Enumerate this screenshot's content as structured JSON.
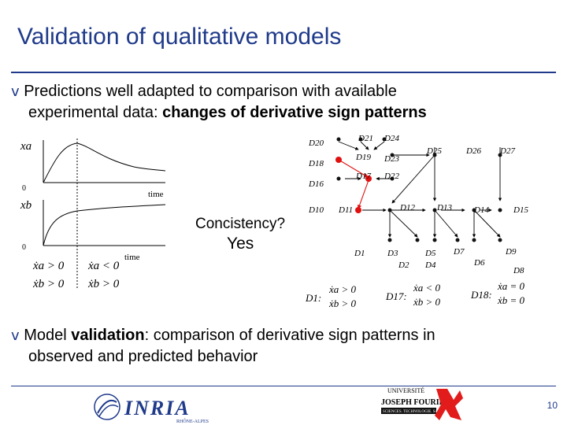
{
  "title": "Validation of qualitative models",
  "bullet_glyph": "v",
  "bullet1": {
    "line1": "Predictions well adapted to comparison with available",
    "line2_prefix": "experimental data: ",
    "line2_bold": "changes of derivative sign patterns"
  },
  "bullet2": {
    "prefix": "Model ",
    "bold": "validation",
    "rest": ": comparison of derivative sign patterns in",
    "line2": "observed and predicted behavior"
  },
  "plot": {
    "xa_label": "xa",
    "xb_label": "xb",
    "zero": "0",
    "time": "time",
    "deriv_left": [
      "ẋa > 0",
      "ẋb > 0"
    ],
    "deriv_right": [
      "ẋa < 0",
      "ẋb > 0"
    ]
  },
  "question": "Concistency?",
  "answer": "Yes",
  "graph": {
    "node_labels": [
      "D20",
      "D21",
      "D24",
      "D18",
      "D19",
      "D23",
      "D25",
      "D26",
      "D27",
      "D16",
      "D17",
      "D22",
      "D10",
      "D11",
      "D12",
      "D13",
      "D14",
      "D15",
      "D1",
      "D3",
      "D5",
      "D7",
      "D9",
      "D2",
      "D4",
      "D6",
      "D8"
    ],
    "d1_label": "D1:",
    "d1_values": [
      "ẋa > 0",
      "ẋb > 0"
    ],
    "d17_label": "D17:",
    "d17_values": [
      "ẋa < 0",
      "ẋb > 0"
    ],
    "d18_label": "D18:",
    "d18_values": [
      "ẋa = 0",
      "ẋb = 0"
    ]
  },
  "logos": {
    "inria": "INRIA",
    "inria_sub": "RHÔNE-ALPES",
    "ujf": [
      "UNIVERSITÉ",
      "JOSEPH FOURIER",
      "SCIENCES. TECHNOLOGIE. SANTÉ"
    ]
  },
  "page_number": "10",
  "colors": {
    "title": "#1f3a8a",
    "highlight_node": "#e01010",
    "node": "#111111",
    "logo_red": "#e21b1b"
  }
}
